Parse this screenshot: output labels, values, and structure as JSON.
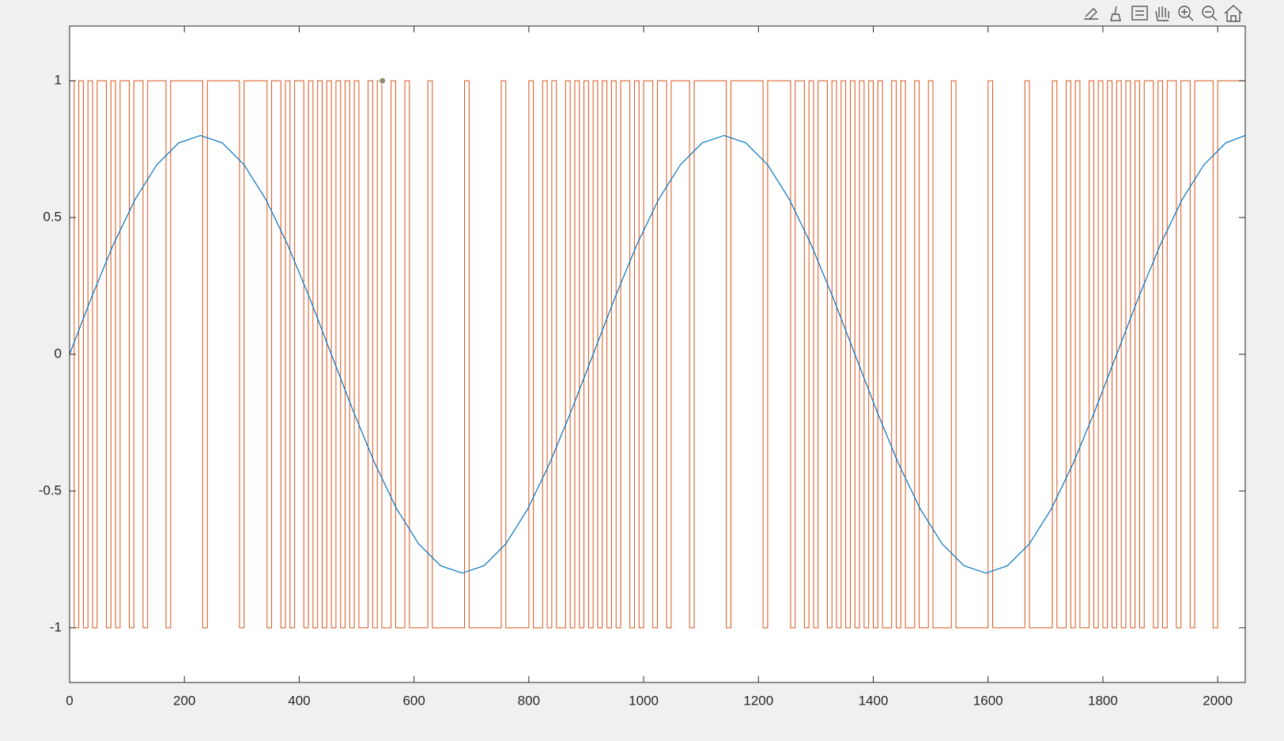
{
  "chart_data": {
    "type": "line",
    "xlim": [
      0,
      2048
    ],
    "ylim": [
      -1.2,
      1.2
    ],
    "xticks": [
      0,
      200,
      400,
      600,
      800,
      1000,
      1200,
      1400,
      1600,
      1800,
      2000
    ],
    "yticks": [
      -1,
      -0.5,
      0,
      0.5,
      1
    ],
    "grid": false,
    "series": [
      {
        "color": "#D95319",
        "step": true,
        "x": [
          0,
          8,
          16,
          24,
          32,
          40,
          48,
          56,
          64,
          72,
          80,
          88,
          96,
          104,
          112,
          120,
          128,
          136,
          144,
          152,
          160,
          168,
          176,
          184,
          192,
          200,
          208,
          216,
          224,
          232,
          240,
          248,
          256,
          264,
          272,
          280,
          288,
          296,
          304,
          312,
          320,
          328,
          336,
          344,
          352,
          360,
          368,
          376,
          384,
          392,
          400,
          408,
          416,
          424,
          432,
          440,
          448,
          456,
          464,
          472,
          480,
          488,
          496,
          504,
          512,
          520,
          528,
          536,
          544,
          552,
          560,
          568,
          576,
          584,
          592,
          600,
          608,
          616,
          624,
          632,
          640,
          648,
          656,
          664,
          672,
          680,
          688,
          696,
          704,
          712,
          720,
          728,
          736,
          744,
          752,
          760,
          768,
          776,
          784,
          792,
          800,
          808,
          816,
          824,
          832,
          840,
          848,
          856,
          864,
          872,
          880,
          888,
          896,
          904,
          912,
          920,
          928,
          936,
          944,
          952,
          960,
          968,
          976,
          984,
          992,
          1000,
          1008,
          1016,
          1024,
          1032,
          1040,
          1048,
          1056,
          1064,
          1072,
          1080,
          1088,
          1096,
          1104,
          1112,
          1120,
          1128,
          1136,
          1144,
          1152,
          1160,
          1168,
          1176,
          1184,
          1192,
          1200,
          1208,
          1216,
          1224,
          1232,
          1240,
          1248,
          1256,
          1264,
          1272,
          1280,
          1288,
          1296,
          1304,
          1312,
          1320,
          1328,
          1336,
          1344,
          1352,
          1360,
          1368,
          1376,
          1384,
          1392,
          1400,
          1408,
          1416,
          1424,
          1432,
          1440,
          1448,
          1456,
          1464,
          1472,
          1480,
          1488,
          1496,
          1504,
          1512,
          1520,
          1528,
          1536,
          1544,
          1552,
          1560,
          1568,
          1576,
          1584,
          1592,
          1600,
          1608,
          1616,
          1624,
          1632,
          1640,
          1648,
          1656,
          1664,
          1672,
          1680,
          1688,
          1696,
          1704,
          1712,
          1720,
          1728,
          1736,
          1744,
          1752,
          1760,
          1768,
          1776,
          1784,
          1792,
          1800,
          1808,
          1816,
          1824,
          1832,
          1840,
          1848,
          1856,
          1864,
          1872,
          1880,
          1888,
          1896,
          1904,
          1912,
          1920,
          1928,
          1936,
          1944,
          1952,
          1960,
          1968,
          1976,
          1984,
          1992,
          2000,
          2008,
          2016,
          2024,
          2032,
          2040,
          2048
        ],
        "values": [
          1,
          -1,
          1,
          -1,
          1,
          -1,
          1,
          1,
          -1,
          1,
          -1,
          1,
          1,
          -1,
          1,
          1,
          -1,
          1,
          1,
          1,
          1,
          -1,
          1,
          1,
          1,
          1,
          1,
          1,
          1,
          -1,
          1,
          1,
          1,
          1,
          1,
          1,
          1,
          -1,
          1,
          1,
          1,
          1,
          1,
          -1,
          1,
          1,
          -1,
          1,
          -1,
          1,
          1,
          -1,
          1,
          -1,
          1,
          -1,
          1,
          -1,
          1,
          -1,
          1,
          -1,
          1,
          -1,
          -1,
          1,
          -1,
          1,
          -1,
          -1,
          1,
          -1,
          -1,
          1,
          -1,
          -1,
          -1,
          -1,
          1,
          -1,
          -1,
          -1,
          -1,
          -1,
          -1,
          -1,
          1,
          -1,
          -1,
          -1,
          -1,
          -1,
          -1,
          -1,
          1,
          -1,
          -1,
          -1,
          -1,
          -1,
          1,
          -1,
          -1,
          1,
          -1,
          1,
          -1,
          -1,
          1,
          -1,
          1,
          -1,
          1,
          -1,
          1,
          -1,
          1,
          -1,
          1,
          -1,
          1,
          1,
          -1,
          1,
          -1,
          1,
          1,
          -1,
          1,
          1,
          -1,
          1,
          1,
          1,
          1,
          -1,
          1,
          1,
          1,
          1,
          1,
          1,
          1,
          -1,
          1,
          1,
          1,
          1,
          1,
          1,
          1,
          -1,
          1,
          1,
          1,
          1,
          1,
          -1,
          1,
          1,
          -1,
          1,
          -1,
          1,
          1,
          -1,
          1,
          -1,
          1,
          -1,
          1,
          -1,
          1,
          -1,
          1,
          -1,
          1,
          -1,
          -1,
          1,
          -1,
          1,
          -1,
          -1,
          1,
          -1,
          -1,
          1,
          -1,
          -1,
          -1,
          -1,
          1,
          -1,
          -1,
          -1,
          -1,
          -1,
          -1,
          -1,
          1,
          -1,
          -1,
          -1,
          -1,
          -1,
          -1,
          -1,
          1,
          -1,
          -1,
          -1,
          -1,
          -1,
          1,
          -1,
          -1,
          1,
          -1,
          1,
          -1,
          -1,
          1,
          -1,
          1,
          -1,
          1,
          -1,
          1,
          -1,
          1,
          -1,
          1,
          -1,
          1,
          1,
          -1,
          1,
          -1,
          1,
          1,
          -1,
          1,
          1,
          -1,
          1,
          1,
          1,
          1,
          -1,
          1,
          1,
          1,
          1,
          1,
          1,
          1
        ]
      },
      {
        "color": "#0072BD",
        "x": [
          0,
          38,
          76,
          114,
          152,
          190,
          228,
          266,
          304,
          342,
          380,
          418,
          456,
          494,
          532,
          570,
          608,
          646,
          684,
          722,
          760,
          798,
          836,
          874,
          912,
          950,
          988,
          1026,
          1064,
          1102,
          1140,
          1178,
          1216,
          1254,
          1292,
          1330,
          1368,
          1406,
          1444,
          1482,
          1520,
          1558,
          1596,
          1634,
          1672,
          1710,
          1748,
          1786,
          1824,
          1862,
          1900,
          1938,
          1976,
          2014,
          2048
        ],
        "values": [
          0,
          0.207,
          0.4,
          0.566,
          0.693,
          0.773,
          0.8,
          0.773,
          0.693,
          0.566,
          0.4,
          0.207,
          0,
          -0.207,
          -0.4,
          -0.566,
          -0.693,
          -0.773,
          -0.8,
          -0.773,
          -0.693,
          -0.566,
          -0.4,
          -0.207,
          0,
          0.207,
          0.4,
          0.566,
          0.693,
          0.773,
          0.8,
          0.773,
          0.693,
          0.566,
          0.4,
          0.207,
          0,
          -0.207,
          -0.4,
          -0.566,
          -0.693,
          -0.773,
          -0.8,
          -0.773,
          -0.693,
          -0.566,
          -0.4,
          -0.207,
          0,
          0.207,
          0.4,
          0.566,
          0.693,
          0.773,
          0.8
        ]
      }
    ],
    "datatip": {
      "x": 545,
      "y": 1,
      "color": "#8c8c70"
    }
  }
}
